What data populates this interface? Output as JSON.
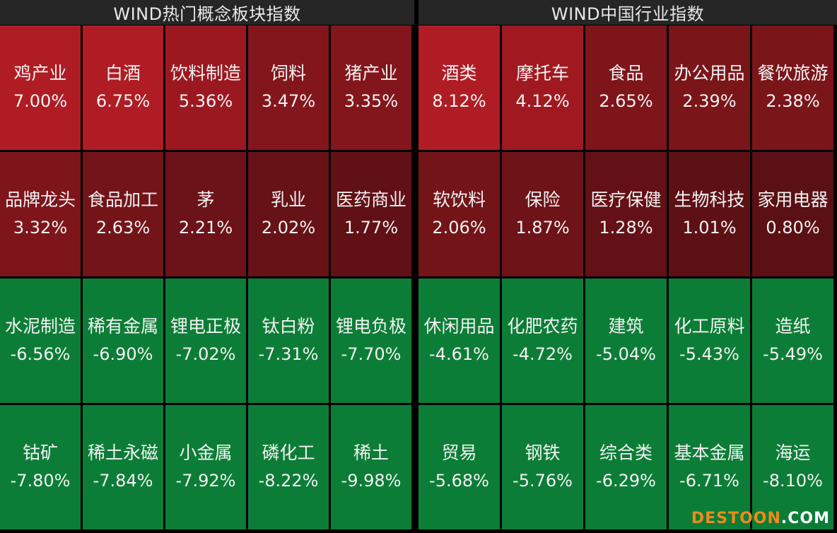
{
  "panels": [
    {
      "title": "WIND热门概念板块指数",
      "rows": [
        [
          {
            "name": "鸡产业",
            "pct": "7.00%",
            "color": "#b01c24"
          },
          {
            "name": "白酒",
            "pct": "6.75%",
            "color": "#b01c24"
          },
          {
            "name": "饮料制造",
            "pct": "5.36%",
            "color": "#9c1820"
          },
          {
            "name": "饲料",
            "pct": "3.47%",
            "color": "#83161c"
          },
          {
            "name": "猪产业",
            "pct": "3.35%",
            "color": "#83161c"
          }
        ],
        [
          {
            "name": "品牌龙头",
            "pct": "3.32%",
            "color": "#7d151b"
          },
          {
            "name": "食品加工",
            "pct": "2.63%",
            "color": "#731419"
          },
          {
            "name": "茅",
            "pct": "2.21%",
            "color": "#6b1318"
          },
          {
            "name": "乳业",
            "pct": "2.02%",
            "color": "#661217"
          },
          {
            "name": "医药商业",
            "pct": "1.77%",
            "color": "#611116"
          }
        ],
        [
          {
            "name": "水泥制造",
            "pct": "-6.56%",
            "color": "#0c7d37"
          },
          {
            "name": "稀有金属",
            "pct": "-6.90%",
            "color": "#0c7d37"
          },
          {
            "name": "锂电正极",
            "pct": "-7.02%",
            "color": "#0c7d37"
          },
          {
            "name": "钛白粉",
            "pct": "-7.31%",
            "color": "#0c7d37"
          },
          {
            "name": "锂电负极",
            "pct": "-7.70%",
            "color": "#0c7d37"
          }
        ],
        [
          {
            "name": "钴矿",
            "pct": "-7.80%",
            "color": "#0c7d37"
          },
          {
            "name": "稀土永磁",
            "pct": "-7.84%",
            "color": "#0c7d37"
          },
          {
            "name": "小金属",
            "pct": "-7.92%",
            "color": "#0c7d37"
          },
          {
            "name": "磷化工",
            "pct": "-8.22%",
            "color": "#0c7d37"
          },
          {
            "name": "稀土",
            "pct": "-9.98%",
            "color": "#0c7d37"
          }
        ]
      ]
    },
    {
      "title": "WIND中国行业指数",
      "rows": [
        [
          {
            "name": "酒类",
            "pct": "8.12%",
            "color": "#b01c24"
          },
          {
            "name": "摩托车",
            "pct": "4.12%",
            "color": "#a01920"
          },
          {
            "name": "食品",
            "pct": "2.65%",
            "color": "#7e151b"
          },
          {
            "name": "办公用品",
            "pct": "2.39%",
            "color": "#7a151a"
          },
          {
            "name": "餐饮旅游",
            "pct": "2.38%",
            "color": "#7a151a"
          }
        ],
        [
          {
            "name": "软饮料",
            "pct": "2.06%",
            "color": "#731419"
          },
          {
            "name": "保险",
            "pct": "1.87%",
            "color": "#6e1318"
          },
          {
            "name": "医疗保健",
            "pct": "1.28%",
            "color": "#631116"
          },
          {
            "name": "生物科技",
            "pct": "1.01%",
            "color": "#5e1115"
          },
          {
            "name": "家用电器",
            "pct": "0.80%",
            "color": "#5a1014"
          }
        ],
        [
          {
            "name": "休闲用品",
            "pct": "-4.61%",
            "color": "#0c7d37"
          },
          {
            "name": "化肥农药",
            "pct": "-4.72%",
            "color": "#0c7d37"
          },
          {
            "name": "建筑",
            "pct": "-5.04%",
            "color": "#0c7d37"
          },
          {
            "name": "化工原料",
            "pct": "-5.43%",
            "color": "#0c7d37"
          },
          {
            "name": "造纸",
            "pct": "-5.49%",
            "color": "#0c7d37"
          }
        ],
        [
          {
            "name": "贸易",
            "pct": "-5.68%",
            "color": "#0c7d37"
          },
          {
            "name": "钢铁",
            "pct": "-5.76%",
            "color": "#0c7d37"
          },
          {
            "name": "综合类",
            "pct": "-6.29%",
            "color": "#0c7d37"
          },
          {
            "name": "基本金属",
            "pct": "-6.71%",
            "color": "#0c7d37"
          },
          {
            "name": "海运",
            "pct": "-8.10%",
            "color": "#0c7d37"
          }
        ]
      ]
    }
  ],
  "watermark": {
    "brand": "DESTOON",
    "suffix": ".COM"
  }
}
